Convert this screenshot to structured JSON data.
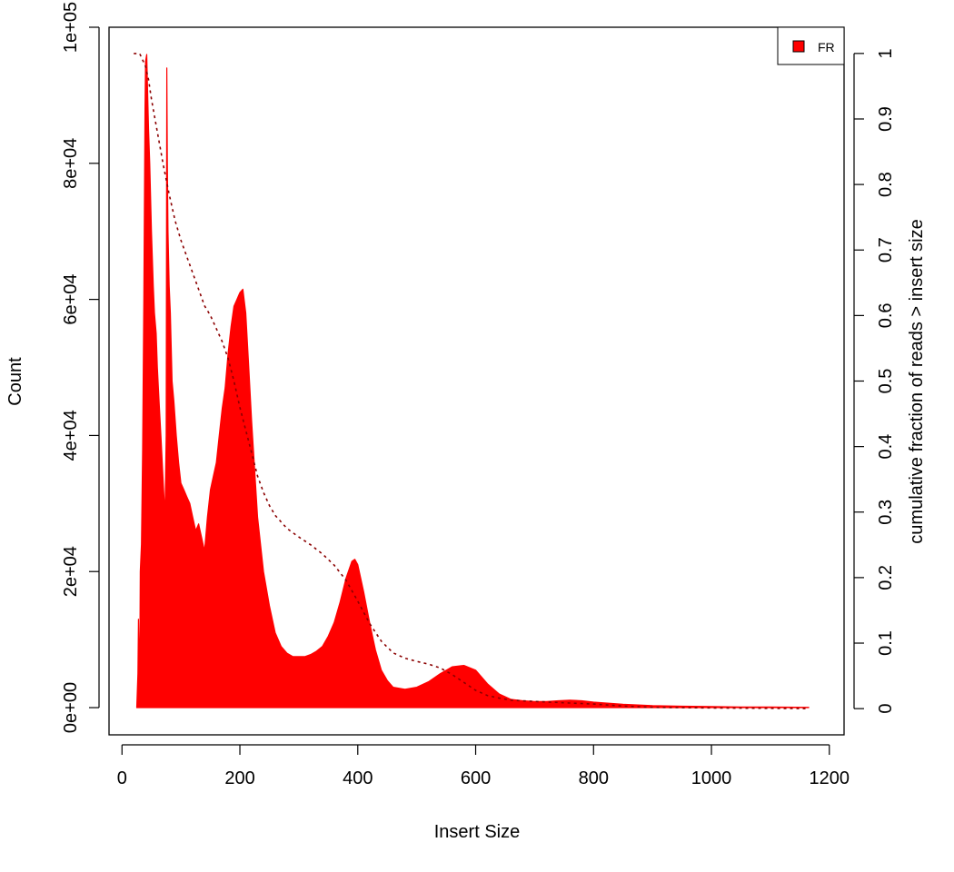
{
  "chart_data": {
    "type": "area",
    "title": "",
    "xlabel": "Insert Size",
    "ylabel": "Count",
    "y2label": "cumulative fraction of reads > insert size",
    "xlim": [
      -22,
      1225
    ],
    "ylim": [
      -4000,
      100000
    ],
    "y2lim": [
      -0.04,
      1.04
    ],
    "x_ticks": [
      0,
      200,
      400,
      600,
      800,
      1000,
      1200
    ],
    "x_tick_labels": [
      "0",
      "200",
      "400",
      "600",
      "800",
      "1000",
      "1200"
    ],
    "y_ticks": [
      0,
      20000,
      40000,
      60000,
      80000,
      100000
    ],
    "y_tick_labels": [
      "0e+00",
      "2e+04",
      "4e+04",
      "6e+04",
      "8e+04",
      "1e+05"
    ],
    "y2_ticks": [
      0,
      0.1,
      0.2,
      0.3,
      0.4,
      0.5,
      0.6,
      0.7,
      0.8,
      0.9,
      1
    ],
    "y2_tick_labels": [
      "0",
      "0.1",
      "0.2",
      "0.3",
      "0.4",
      "0.5",
      "0.6",
      "0.7",
      "0.8",
      "0.9",
      "1"
    ],
    "grid": false,
    "legend": {
      "position": "top-right",
      "entries": [
        "FR"
      ]
    },
    "colors": {
      "histogram": "#ff0000",
      "cumulative": "#8b0000"
    },
    "series": [
      {
        "name": "FR",
        "kind": "histogram",
        "x": [
          25,
          27,
          28,
          30,
          31,
          33,
          35,
          37,
          39,
          40,
          42,
          43,
          45,
          47,
          50,
          53,
          55,
          58,
          60,
          63,
          66,
          70,
          73,
          75,
          76,
          77,
          78,
          80,
          82,
          85,
          88,
          92,
          96,
          100,
          105,
          110,
          115,
          120,
          125,
          130,
          135,
          140,
          145,
          150,
          155,
          160,
          165,
          170,
          175,
          180,
          185,
          190,
          195,
          200,
          205,
          210,
          215,
          220,
          230,
          240,
          250,
          260,
          270,
          280,
          290,
          300,
          310,
          320,
          330,
          340,
          350,
          360,
          370,
          380,
          390,
          395,
          400,
          410,
          420,
          430,
          440,
          450,
          460,
          480,
          500,
          520,
          540,
          560,
          580,
          600,
          620,
          640,
          660,
          680,
          700,
          720,
          740,
          760,
          780,
          800,
          850,
          900,
          950,
          1000,
          1050,
          1100,
          1165
        ],
        "y": [
          0,
          5000,
          13000,
          3000,
          20000,
          24000,
          38000,
          60000,
          88000,
          95000,
          96000,
          92000,
          85000,
          80000,
          70000,
          62000,
          58000,
          55000,
          50000,
          45000,
          40000,
          33000,
          28000,
          40000,
          94000,
          80000,
          70000,
          62000,
          58000,
          48000,
          45000,
          40000,
          36000,
          33000,
          32000,
          31000,
          30000,
          28000,
          26000,
          27000,
          25000,
          23000,
          28000,
          32000,
          34000,
          36000,
          40000,
          44000,
          47000,
          52000,
          56000,
          59000,
          60000,
          61000,
          61500,
          58000,
          50000,
          42000,
          28000,
          20000,
          15000,
          11000,
          9000,
          8000,
          7500,
          7500,
          7500,
          7800,
          8300,
          9000,
          10500,
          12500,
          15500,
          19000,
          21500,
          21800,
          21000,
          17000,
          12500,
          8500,
          5500,
          4000,
          3000,
          2700,
          3000,
          3800,
          5000,
          6000,
          6200,
          5500,
          3500,
          2000,
          1200,
          1000,
          900,
          900,
          1000,
          1100,
          1000,
          800,
          500,
          300,
          200,
          150,
          100,
          80,
          50
        ]
      },
      {
        "name": "cumulative fraction of reads > insert size",
        "kind": "line",
        "axis": "right",
        "style": "dotted",
        "x": [
          20,
          30,
          35,
          40,
          45,
          50,
          60,
          70,
          80,
          90,
          100,
          110,
          120,
          130,
          140,
          150,
          160,
          170,
          180,
          190,
          200,
          210,
          220,
          230,
          240,
          250,
          260,
          270,
          280,
          300,
          320,
          340,
          360,
          380,
          400,
          420,
          440,
          460,
          480,
          500,
          520,
          540,
          560,
          580,
          600,
          620,
          640,
          660,
          680,
          700,
          750,
          800,
          850,
          900,
          1000,
          1165
        ],
        "y": [
          1.0,
          1.0,
          0.99,
          0.98,
          0.96,
          0.93,
          0.88,
          0.83,
          0.785,
          0.745,
          0.715,
          0.69,
          0.665,
          0.64,
          0.615,
          0.6,
          0.58,
          0.56,
          0.535,
          0.5,
          0.46,
          0.425,
          0.39,
          0.355,
          0.33,
          0.31,
          0.295,
          0.285,
          0.275,
          0.262,
          0.25,
          0.236,
          0.219,
          0.196,
          0.164,
          0.13,
          0.103,
          0.085,
          0.077,
          0.072,
          0.068,
          0.062,
          0.052,
          0.04,
          0.028,
          0.02,
          0.016,
          0.013,
          0.012,
          0.011,
          0.009,
          0.007,
          0.004,
          0.002,
          0.001,
          0.0
        ]
      }
    ]
  }
}
